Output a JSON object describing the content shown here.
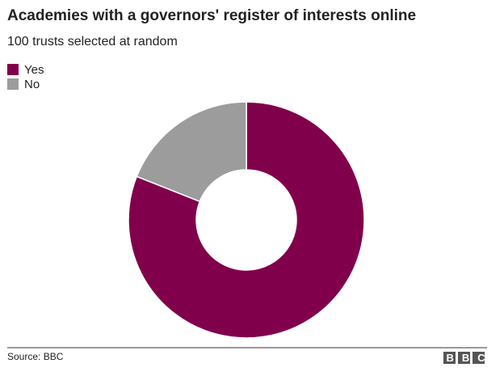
{
  "chart_data": {
    "type": "donut",
    "title": "Academies with a governors' register of interests online",
    "subtitle": "100 trusts selected at random",
    "categories": [
      "Yes",
      "No"
    ],
    "values": [
      81,
      19
    ],
    "colors": [
      "#81004c",
      "#9c9c9c"
    ],
    "source": "Source: BBC",
    "logo": "BBC"
  }
}
